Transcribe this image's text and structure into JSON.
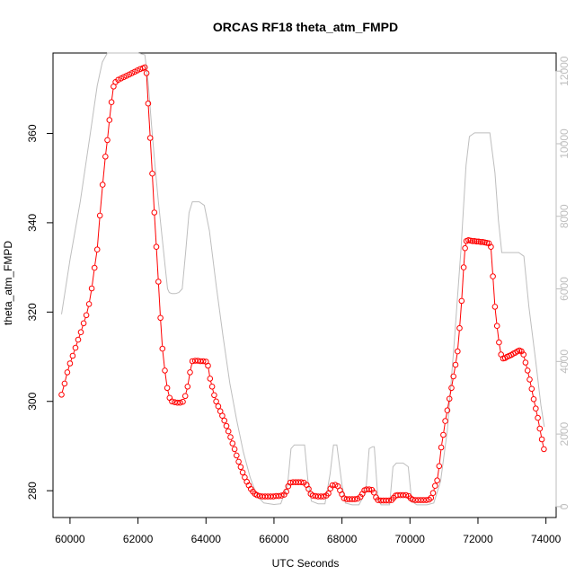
{
  "chart_data": {
    "type": "line",
    "title": "ORCAS RF18 theta_atm_FMPD",
    "xlabel": "UTC Seconds",
    "ylabel": "theta_atm_FMPD",
    "xlim": [
      59500,
      74300
    ],
    "ylim": [
      274,
      378
    ],
    "y2lim": [
      -300,
      12500
    ],
    "x_ticks": [
      60000,
      62000,
      64000,
      66000,
      68000,
      70000,
      72000,
      74000
    ],
    "y_ticks": [
      280,
      300,
      320,
      340,
      360
    ],
    "y2_ticks": [
      0,
      2000,
      4000,
      6000,
      8000,
      10000,
      12000
    ],
    "colors": {
      "theta": "#ff0000",
      "altitude": "#bebebe",
      "axis": "#000000"
    },
    "series": [
      {
        "axis": "left",
        "style": "points-lines",
        "values": [
          [
            59750,
            301.5
          ],
          [
            59840,
            304
          ],
          [
            59920,
            306.5
          ],
          [
            60000,
            308.5
          ],
          [
            60080,
            310.2
          ],
          [
            60160,
            312
          ],
          [
            60240,
            313.8
          ],
          [
            60320,
            315.5
          ],
          [
            60400,
            317.5
          ],
          [
            60480,
            319.3
          ],
          [
            60560,
            321.8
          ],
          [
            60640,
            325.3
          ],
          [
            60720,
            329.9
          ],
          [
            60800,
            334
          ],
          [
            60880,
            341.6
          ],
          [
            60960,
            348.5
          ],
          [
            61040,
            354.8
          ],
          [
            61100,
            358.5
          ],
          [
            61160,
            363
          ],
          [
            61220,
            367
          ],
          [
            61280,
            370.5
          ],
          [
            61340,
            371.5
          ],
          [
            61420,
            372
          ],
          [
            61500,
            372.3
          ],
          [
            61580,
            372.6
          ],
          [
            61660,
            372.9
          ],
          [
            61740,
            373.2
          ],
          [
            61820,
            373.5
          ],
          [
            61900,
            373.8
          ],
          [
            61980,
            374.1
          ],
          [
            62060,
            374.4
          ],
          [
            62140,
            374.6
          ],
          [
            62200,
            374.8
          ],
          [
            62250,
            373.5
          ],
          [
            62300,
            366.7
          ],
          [
            62360,
            359
          ],
          [
            62420,
            351
          ],
          [
            62480,
            342.3
          ],
          [
            62540,
            334.6
          ],
          [
            62600,
            326.8
          ],
          [
            62660,
            318.7
          ],
          [
            62720,
            311.8
          ],
          [
            62790,
            306.9
          ],
          [
            62860,
            303
          ],
          [
            62930,
            300.8
          ],
          [
            63000,
            300
          ],
          [
            63080,
            299.8
          ],
          [
            63160,
            299.7
          ],
          [
            63240,
            299.7
          ],
          [
            63320,
            299.9
          ],
          [
            63390,
            301.2
          ],
          [
            63460,
            303.3
          ],
          [
            63530,
            306.5
          ],
          [
            63600,
            309
          ],
          [
            63680,
            309.1
          ],
          [
            63760,
            309.1
          ],
          [
            63840,
            309
          ],
          [
            63920,
            309
          ],
          [
            64000,
            308.9
          ],
          [
            64060,
            308
          ],
          [
            64120,
            305.1
          ],
          [
            64180,
            303.3
          ],
          [
            64240,
            301.4
          ],
          [
            64300,
            300
          ],
          [
            64360,
            298.9
          ],
          [
            64420,
            297.8
          ],
          [
            64480,
            296.8
          ],
          [
            64540,
            295.7
          ],
          [
            64600,
            294.5
          ],
          [
            64660,
            293.3
          ],
          [
            64720,
            292
          ],
          [
            64780,
            290.6
          ],
          [
            64840,
            289.3
          ],
          [
            64900,
            287.9
          ],
          [
            64960,
            286.5
          ],
          [
            65020,
            285.3
          ],
          [
            65080,
            284.1
          ],
          [
            65140,
            283
          ],
          [
            65200,
            282
          ],
          [
            65260,
            281.2
          ],
          [
            65320,
            280.4
          ],
          [
            65380,
            279.8
          ],
          [
            65440,
            279.3
          ],
          [
            65500,
            279
          ],
          [
            65580,
            278.8
          ],
          [
            65660,
            278.7
          ],
          [
            65740,
            278.7
          ],
          [
            65820,
            278.7
          ],
          [
            65900,
            278.7
          ],
          [
            65980,
            278.7
          ],
          [
            66060,
            278.8
          ],
          [
            66140,
            278.8
          ],
          [
            66220,
            278.9
          ],
          [
            66300,
            279.1
          ],
          [
            66360,
            279.8
          ],
          [
            66420,
            281
          ],
          [
            66480,
            281.8
          ],
          [
            66560,
            281.9
          ],
          [
            66640,
            281.9
          ],
          [
            66720,
            281.9
          ],
          [
            66800,
            281.9
          ],
          [
            66880,
            281.8
          ],
          [
            66960,
            281.3
          ],
          [
            67020,
            280.4
          ],
          [
            67080,
            279.3
          ],
          [
            67140,
            278.9
          ],
          [
            67220,
            278.8
          ],
          [
            67300,
            278.7
          ],
          [
            67380,
            278.7
          ],
          [
            67460,
            278.7
          ],
          [
            67540,
            278.9
          ],
          [
            67600,
            279.4
          ],
          [
            67660,
            280.5
          ],
          [
            67720,
            281.2
          ],
          [
            67800,
            281.3
          ],
          [
            67880,
            281
          ],
          [
            67940,
            280.1
          ],
          [
            68000,
            279.2
          ],
          [
            68060,
            278.3
          ],
          [
            68140,
            278.1
          ],
          [
            68220,
            278.1
          ],
          [
            68300,
            278.1
          ],
          [
            68380,
            278.1
          ],
          [
            68460,
            278.2
          ],
          [
            68540,
            278.6
          ],
          [
            68600,
            279.3
          ],
          [
            68660,
            280.1
          ],
          [
            68720,
            280.3
          ],
          [
            68800,
            280.3
          ],
          [
            68880,
            280.2
          ],
          [
            68940,
            279.6
          ],
          [
            69000,
            278.5
          ],
          [
            69060,
            277.9
          ],
          [
            69140,
            277.8
          ],
          [
            69220,
            277.8
          ],
          [
            69300,
            277.8
          ],
          [
            69380,
            277.8
          ],
          [
            69460,
            277.9
          ],
          [
            69520,
            278.4
          ],
          [
            69580,
            278.9
          ],
          [
            69640,
            279
          ],
          [
            69720,
            279
          ],
          [
            69800,
            279
          ],
          [
            69880,
            279
          ],
          [
            69960,
            278.8
          ],
          [
            70020,
            278.3
          ],
          [
            70080,
            278
          ],
          [
            70160,
            277.9
          ],
          [
            70240,
            277.9
          ],
          [
            70320,
            277.9
          ],
          [
            70400,
            277.9
          ],
          [
            70480,
            277.9
          ],
          [
            70560,
            278
          ],
          [
            70620,
            278.4
          ],
          [
            70680,
            279.5
          ],
          [
            70740,
            281.1
          ],
          [
            70800,
            282.3
          ],
          [
            70860,
            285.5
          ],
          [
            70920,
            289.7
          ],
          [
            70980,
            292.5
          ],
          [
            71040,
            295.6
          ],
          [
            71100,
            298
          ],
          [
            71160,
            300.6
          ],
          [
            71220,
            303
          ],
          [
            71280,
            305.6
          ],
          [
            71340,
            308.2
          ],
          [
            71400,
            311.2
          ],
          [
            71460,
            316.4
          ],
          [
            71520,
            322.5
          ],
          [
            71580,
            330
          ],
          [
            71620,
            334.3
          ],
          [
            71660,
            335.9
          ],
          [
            71720,
            336.1
          ],
          [
            71780,
            336
          ],
          [
            71840,
            335.9
          ],
          [
            71900,
            335.9
          ],
          [
            71960,
            335.8
          ],
          [
            72020,
            335.8
          ],
          [
            72080,
            335.7
          ],
          [
            72140,
            335.7
          ],
          [
            72200,
            335.6
          ],
          [
            72260,
            335.5
          ],
          [
            72320,
            335.4
          ],
          [
            72380,
            334.6
          ],
          [
            72440,
            328
          ],
          [
            72500,
            321.2
          ],
          [
            72560,
            316.9
          ],
          [
            72620,
            313.2
          ],
          [
            72680,
            310.5
          ],
          [
            72740,
            309.6
          ],
          [
            72800,
            309.7
          ],
          [
            72860,
            310
          ],
          [
            72920,
            310.2
          ],
          [
            72980,
            310.4
          ],
          [
            73040,
            310.7
          ],
          [
            73100,
            310.9
          ],
          [
            73160,
            311.2
          ],
          [
            73220,
            311.4
          ],
          [
            73280,
            311.2
          ],
          [
            73340,
            310.5
          ],
          [
            73400,
            308.7
          ],
          [
            73460,
            306.9
          ],
          [
            73520,
            304.9
          ],
          [
            73580,
            302.8
          ],
          [
            73640,
            300.5
          ],
          [
            73700,
            298.4
          ],
          [
            73760,
            296.3
          ],
          [
            73820,
            293.9
          ],
          [
            73880,
            291.5
          ],
          [
            73940,
            289.3
          ]
        ]
      },
      {
        "axis": "right",
        "style": "line",
        "values": [
          [
            59750,
            5300
          ],
          [
            60000,
            6800
          ],
          [
            60300,
            8400
          ],
          [
            60600,
            10300
          ],
          [
            60800,
            11600
          ],
          [
            60950,
            12250
          ],
          [
            61100,
            12500
          ],
          [
            61500,
            12500
          ],
          [
            62000,
            12500
          ],
          [
            62200,
            12450
          ],
          [
            62300,
            11700
          ],
          [
            62400,
            10500
          ],
          [
            62500,
            9400
          ],
          [
            62600,
            8400
          ],
          [
            62700,
            7500
          ],
          [
            62800,
            6600
          ],
          [
            62870,
            6000
          ],
          [
            62920,
            5900
          ],
          [
            63000,
            5870
          ],
          [
            63100,
            5870
          ],
          [
            63200,
            5900
          ],
          [
            63300,
            6000
          ],
          [
            63400,
            7000
          ],
          [
            63500,
            8100
          ],
          [
            63600,
            8400
          ],
          [
            63700,
            8400
          ],
          [
            63800,
            8400
          ],
          [
            63950,
            8300
          ],
          [
            64100,
            7600
          ],
          [
            64300,
            6100
          ],
          [
            64500,
            4700
          ],
          [
            64700,
            3400
          ],
          [
            64900,
            2400
          ],
          [
            65100,
            1500
          ],
          [
            65300,
            800
          ],
          [
            65500,
            300
          ],
          [
            65700,
            100
          ],
          [
            66000,
            60
          ],
          [
            66200,
            80
          ],
          [
            66400,
            600
          ],
          [
            66500,
            1600
          ],
          [
            66600,
            1700
          ],
          [
            66800,
            1700
          ],
          [
            66900,
            1700
          ],
          [
            67000,
            700
          ],
          [
            67100,
            150
          ],
          [
            67300,
            80
          ],
          [
            67500,
            80
          ],
          [
            67650,
            900
          ],
          [
            67750,
            1700
          ],
          [
            67850,
            1700
          ],
          [
            68000,
            600
          ],
          [
            68100,
            100
          ],
          [
            68300,
            50
          ],
          [
            68500,
            50
          ],
          [
            68700,
            400
          ],
          [
            68800,
            1600
          ],
          [
            68900,
            1650
          ],
          [
            68950,
            1650
          ],
          [
            69050,
            300
          ],
          [
            69150,
            50
          ],
          [
            69300,
            50
          ],
          [
            69400,
            50
          ],
          [
            69500,
            1100
          ],
          [
            69600,
            1200
          ],
          [
            69800,
            1200
          ],
          [
            69950,
            1100
          ],
          [
            70050,
            150
          ],
          [
            70200,
            50
          ],
          [
            70500,
            50
          ],
          [
            70700,
            100
          ],
          [
            70900,
            700
          ],
          [
            71100,
            2100
          ],
          [
            71300,
            4500
          ],
          [
            71500,
            7100
          ],
          [
            71650,
            9400
          ],
          [
            71750,
            10200
          ],
          [
            71900,
            10300
          ],
          [
            72100,
            10300
          ],
          [
            72350,
            10300
          ],
          [
            72500,
            9200
          ],
          [
            72600,
            7900
          ],
          [
            72700,
            7000
          ],
          [
            72800,
            7000
          ],
          [
            73000,
            7000
          ],
          [
            73200,
            7000
          ],
          [
            73350,
            6900
          ],
          [
            73500,
            5500
          ],
          [
            73700,
            4000
          ],
          [
            73850,
            2800
          ],
          [
            73950,
            2200
          ]
        ]
      }
    ]
  }
}
